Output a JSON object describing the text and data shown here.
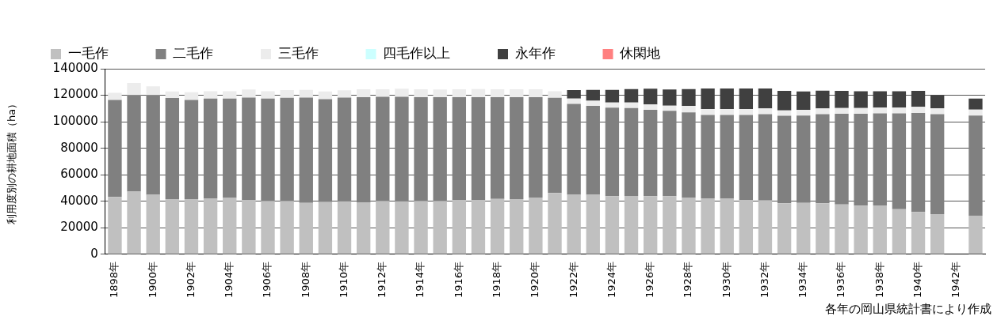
{
  "chart_data": {
    "type": "bar",
    "stacked": true,
    "ylabel": "利用度別の耕地面積（ha）",
    "annotations": [
      "各年の岡山県統計書により作成"
    ],
    "categories": [
      "1898年",
      null,
      "1900年",
      null,
      "1902年",
      null,
      "1904年",
      null,
      "1906年",
      null,
      "1908年",
      null,
      "1910年",
      null,
      "1912年",
      null,
      "1914年",
      null,
      "1916年",
      null,
      "1918年",
      null,
      "1920年",
      null,
      "1922年",
      null,
      "1924年",
      null,
      "1926年",
      null,
      "1928年",
      null,
      "1930年",
      null,
      "1932年",
      null,
      "1934年",
      null,
      "1936年",
      null,
      "1938年",
      null,
      "1940年",
      null,
      "1942年",
      null
    ],
    "series": [
      {
        "name": "一毛作",
        "color": "#c0c0c0",
        "values": [
          43300,
          47300,
          44900,
          41600,
          41600,
          42200,
          42600,
          41000,
          40400,
          40400,
          38800,
          39400,
          40000,
          39000,
          40400,
          40000,
          40400,
          40400,
          41000,
          41000,
          41800,
          41600,
          42900,
          46300,
          44900,
          44900,
          43900,
          44100,
          43900,
          43900,
          42900,
          42200,
          42000,
          41000,
          40600,
          38600,
          38800,
          38600,
          37700,
          36700,
          36900,
          34100,
          32000,
          30400,
          null,
          29200
        ]
      },
      {
        "name": "二毛作",
        "color": "#808080",
        "values": [
          73200,
          72700,
          75100,
          76300,
          74900,
          75300,
          74900,
          77200,
          77100,
          77700,
          79400,
          77700,
          78200,
          79600,
          78400,
          78800,
          78200,
          78200,
          77600,
          77600,
          76800,
          77000,
          75700,
          71800,
          68600,
          67100,
          66700,
          66300,
          65100,
          64300,
          64200,
          62900,
          63100,
          64100,
          65100,
          65900,
          65900,
          67100,
          68400,
          69400,
          69400,
          72200,
          74700,
          75300,
          null,
          75500
        ]
      },
      {
        "name": "三毛作",
        "color": "#ececec",
        "values": [
          5300,
          9200,
          6700,
          4900,
          5700,
          5500,
          5500,
          6100,
          5500,
          5800,
          5900,
          5700,
          5500,
          5900,
          5700,
          6100,
          5900,
          5700,
          5900,
          6100,
          5900,
          5900,
          5900,
          4900,
          4000,
          3900,
          3900,
          4100,
          4100,
          4000,
          4900,
          4500,
          4500,
          4500,
          4300,
          4100,
          4300,
          4300,
          4300,
          4300,
          4300,
          4300,
          4500,
          4500,
          null,
          4500
        ]
      },
      {
        "name": "四毛作以上",
        "color": "#ccffff",
        "values": [
          0,
          0,
          0,
          0,
          0,
          0,
          0,
          0,
          0,
          0,
          0,
          0,
          0,
          0,
          0,
          0,
          0,
          0,
          0,
          0,
          0,
          0,
          0,
          0,
          0,
          0,
          0,
          0,
          0,
          0,
          0,
          0,
          0,
          0,
          0,
          0,
          0,
          0,
          0,
          0,
          0,
          0,
          0,
          0,
          null,
          0
        ]
      },
      {
        "name": "永年作",
        "color": "#404040",
        "values": [
          0,
          0,
          0,
          0,
          0,
          0,
          0,
          0,
          0,
          0,
          0,
          0,
          0,
          0,
          0,
          0,
          0,
          0,
          0,
          0,
          0,
          0,
          0,
          0,
          6400,
          8200,
          9600,
          10200,
          11800,
          12100,
          12700,
          15500,
          15500,
          15500,
          15100,
          14700,
          13800,
          13500,
          12900,
          12600,
          12400,
          12400,
          12100,
          9800,
          null,
          8300
        ]
      },
      {
        "name": "休閑地",
        "color": "#ff8080",
        "values": [
          0,
          0,
          0,
          0,
          0,
          0,
          0,
          0,
          0,
          0,
          0,
          0,
          0,
          0,
          0,
          0,
          0,
          0,
          0,
          0,
          0,
          0,
          0,
          0,
          0,
          0,
          0,
          0,
          0,
          0,
          0,
          0,
          0,
          0,
          0,
          0,
          0,
          0,
          0,
          0,
          0,
          0,
          0,
          0,
          null,
          0
        ]
      }
    ],
    "ylim": [
      0,
      140000
    ],
    "yticks": [
      0,
      20000,
      40000,
      60000,
      80000,
      100000,
      120000,
      140000
    ],
    "grid": "y",
    "legend": "top"
  }
}
